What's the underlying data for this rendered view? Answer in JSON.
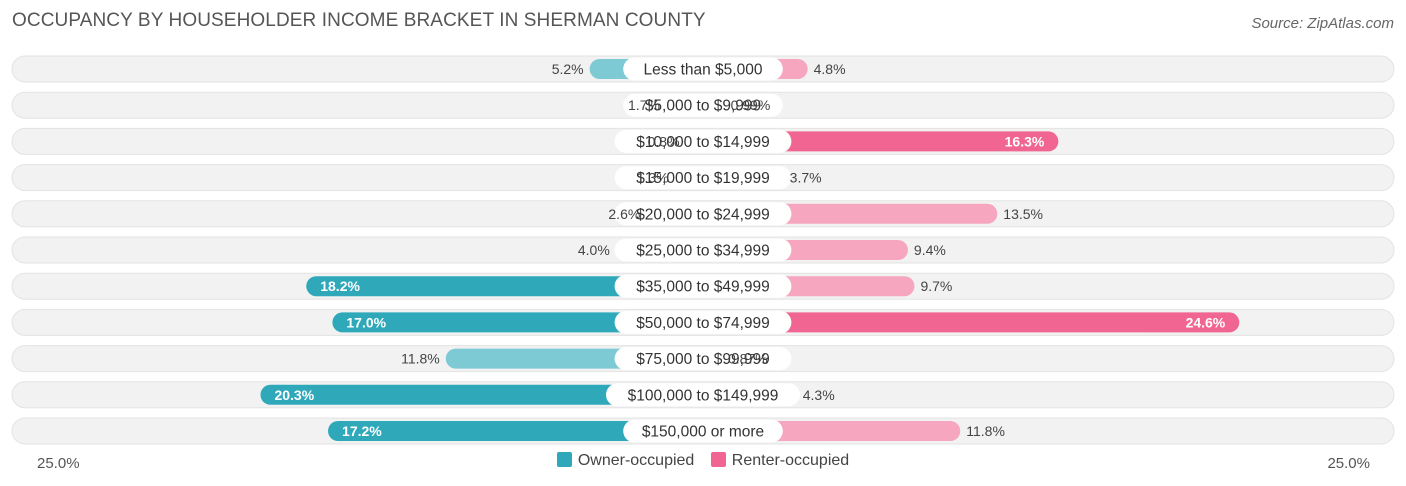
{
  "title": "OCCUPANCY BY HOUSEHOLDER INCOME BRACKET IN SHERMAN COUNTY",
  "source": "Source: ZipAtlas.com",
  "colors": {
    "owner": "#2fa9ba",
    "owner_light": "#7dcad5",
    "renter": "#f06592",
    "renter_light": "#f7a6bf",
    "track": "#f2f2f2"
  },
  "legend": {
    "owner_label": "Owner-occupied",
    "renter_label": "Renter-occupied"
  },
  "chart_data": {
    "type": "bar",
    "orientation": "horizontal-diverging",
    "categories": [
      "Less than $5,000",
      "$5,000 to $9,999",
      "$10,000 to $14,999",
      "$15,000 to $19,999",
      "$20,000 to $24,999",
      "$25,000 to $34,999",
      "$35,000 to $49,999",
      "$50,000 to $74,999",
      "$75,000 to $99,999",
      "$100,000 to $149,999",
      "$150,000 or more"
    ],
    "series": [
      {
        "name": "Owner-occupied",
        "values": [
          5.2,
          1.7,
          0.8,
          1.3,
          2.6,
          4.0,
          18.2,
          17.0,
          11.8,
          20.3,
          17.2
        ],
        "labels": [
          "5.2%",
          "1.7%",
          "0.8%",
          "1.3%",
          "2.6%",
          "4.0%",
          "18.2%",
          "17.0%",
          "11.8%",
          "20.3%",
          "17.2%"
        ]
      },
      {
        "name": "Renter-occupied",
        "values": [
          4.8,
          0.99,
          16.3,
          3.7,
          13.5,
          9.4,
          9.7,
          24.6,
          0.87,
          4.3,
          11.8
        ],
        "labels": [
          "4.8%",
          "0.99%",
          "16.3%",
          "3.7%",
          "13.5%",
          "9.4%",
          "9.7%",
          "24.6%",
          "0.87%",
          "4.3%",
          "11.8%"
        ]
      }
    ],
    "axis_max": 25.0,
    "axis_left_label": "25.0%",
    "axis_right_label": "25.0%",
    "legend_position": "bottom-center"
  }
}
